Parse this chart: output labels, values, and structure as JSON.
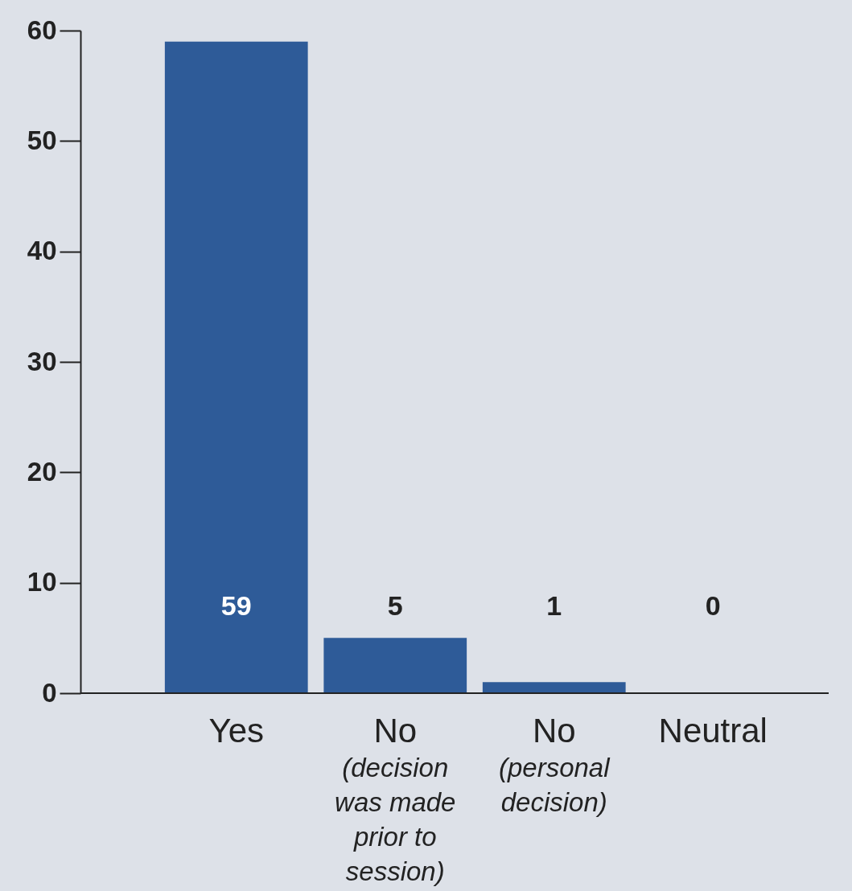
{
  "chart_data": {
    "type": "bar",
    "categories": [
      "Yes",
      "No",
      "No",
      "Neutral"
    ],
    "values": [
      59,
      5,
      1,
      0
    ],
    "color": "#2e5b98",
    "ylim": [
      0,
      60
    ],
    "yticks": [
      0,
      10,
      20,
      30,
      40,
      50,
      60
    ],
    "grid": false,
    "data_labels": true,
    "annotations": [
      "(decision was made prior to session)",
      "(personal decision)"
    ]
  }
}
